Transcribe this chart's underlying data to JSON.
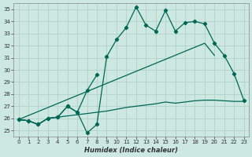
{
  "xlabel": "Humidex (Indice chaleur)",
  "bg_color": "#cce8e0",
  "grid_color": "#aaccc4",
  "line_color": "#006655",
  "xlim": [
    -0.5,
    23.5
  ],
  "ylim": [
    24.5,
    35.5
  ],
  "xticks": [
    0,
    1,
    2,
    3,
    4,
    5,
    6,
    7,
    8,
    9,
    10,
    11,
    12,
    13,
    14,
    15,
    16,
    17,
    18,
    19,
    20,
    21,
    22,
    23
  ],
  "yticks": [
    25,
    26,
    27,
    28,
    29,
    30,
    31,
    32,
    33,
    34,
    35
  ],
  "line1_x": [
    0,
    1,
    2,
    3,
    4,
    5,
    6,
    7,
    8,
    9,
    10,
    11,
    12,
    13,
    14,
    15,
    16,
    17,
    18,
    19,
    20,
    21,
    22,
    23
  ],
  "line1_y": [
    25.9,
    25.8,
    25.5,
    26.0,
    26.1,
    27.0,
    26.5,
    24.8,
    25.5,
    31.1,
    32.5,
    33.5,
    35.2,
    33.7,
    33.2,
    34.9,
    33.2,
    33.9,
    34.0,
    33.8,
    32.2,
    31.2,
    29.7,
    27.5
  ],
  "line2_x": [
    0,
    1,
    2,
    3,
    4,
    5,
    6,
    7,
    8
  ],
  "line2_y": [
    25.9,
    25.8,
    25.5,
    26.0,
    26.1,
    27.0,
    26.5,
    28.3,
    29.6
  ],
  "line3_x": [
    0,
    1,
    2,
    3,
    4,
    5,
    6,
    7,
    8,
    9,
    10,
    11,
    12,
    13,
    14,
    15,
    16,
    17,
    18,
    19,
    20,
    21,
    22,
    23
  ],
  "line3_y": [
    25.9,
    25.8,
    25.5,
    26.0,
    26.1,
    26.2,
    26.3,
    26.4,
    26.5,
    26.6,
    26.75,
    26.9,
    27.0,
    27.1,
    27.2,
    27.35,
    27.25,
    27.35,
    27.45,
    27.5,
    27.5,
    27.45,
    27.4,
    27.4
  ],
  "line4_x": [
    0,
    19,
    20
  ],
  "line4_y": [
    25.9,
    32.2,
    31.2
  ]
}
